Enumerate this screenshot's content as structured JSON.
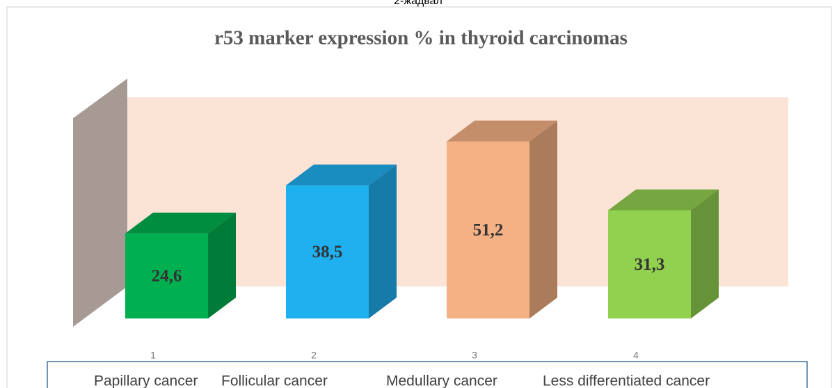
{
  "caption": "2-жадвал",
  "chart_data": {
    "type": "bar3d",
    "title": "r53 marker expression % in thyroid carcinomas",
    "x_numbers": [
      "1",
      "2",
      "3",
      "4"
    ],
    "categories": [
      "Papillary cancer",
      "Follicular cancer",
      "Medullary cancer",
      "Less differentiated cancer"
    ],
    "values": [
      24.6,
      38.5,
      51.2,
      31.3
    ],
    "value_labels": [
      "24,6",
      "38,5",
      "51,2",
      "31,3"
    ],
    "colors": [
      "#00b050",
      "#1fb0f0",
      "#f4b183",
      "#92d050"
    ]
  }
}
